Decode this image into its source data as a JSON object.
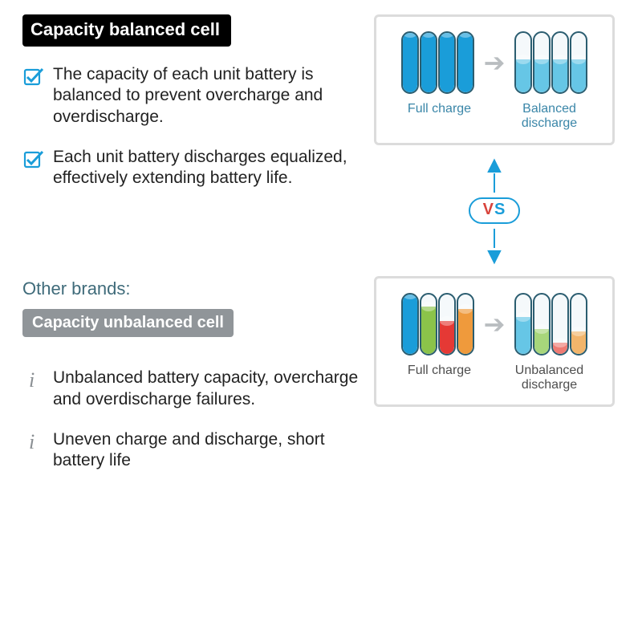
{
  "balanced": {
    "tag": "Capacity balanced cell",
    "tag_bg": "#000000",
    "bullets": [
      "The capacity of each unit battery is balanced to prevent overcharge and overdischarge.",
      "Each unit battery discharges equalized, effectively extending battery life."
    ],
    "bullet_icon": "checkbox",
    "panel": {
      "left_label": "Full charge",
      "right_label": "Balanced discharge",
      "left_cells": [
        {
          "level": 1.0,
          "color": "#1a9dd9"
        },
        {
          "level": 1.0,
          "color": "#1a9dd9"
        },
        {
          "level": 1.0,
          "color": "#1a9dd9"
        },
        {
          "level": 1.0,
          "color": "#1a9dd9"
        }
      ],
      "right_cells": [
        {
          "level": 0.55,
          "color": "#66c6e6"
        },
        {
          "level": 0.55,
          "color": "#66c6e6"
        },
        {
          "level": 0.55,
          "color": "#66c6e6"
        },
        {
          "level": 0.55,
          "color": "#66c6e6"
        }
      ],
      "label_color": "#2e88b5"
    }
  },
  "other_brands_heading": "Other brands:",
  "unbalanced": {
    "tag": "Capacity unbalanced cell",
    "tag_bg": "#909599",
    "bullets": [
      "Unbalanced battery capacity, overcharge and overdischarge failures.",
      "Uneven charge and discharge, short battery life"
    ],
    "bullet_icon": "info",
    "panel": {
      "left_label": "Full charge",
      "right_label": "Unbalanced discharge",
      "left_cells": [
        {
          "level": 1.0,
          "color": "#1a9dd9"
        },
        {
          "level": 0.8,
          "color": "#8bc34a"
        },
        {
          "level": 0.55,
          "color": "#e53935"
        },
        {
          "level": 0.75,
          "color": "#ef9a3c"
        }
      ],
      "right_cells": [
        {
          "level": 0.62,
          "color": "#66c6e6"
        },
        {
          "level": 0.42,
          "color": "#a7d67b"
        },
        {
          "level": 0.18,
          "color": "#ef7b73"
        },
        {
          "level": 0.38,
          "color": "#f2b56b"
        }
      ],
      "label_color": "#4e4e4e"
    }
  },
  "vs": {
    "text": "VS",
    "v_color": "#d8443c",
    "s_color": "#1a9dd9",
    "arrow_color": "#1a9dd9",
    "border_color": "#1a9dd9"
  },
  "style": {
    "panel_border": "#dcdcdc",
    "cell_outline": "#2b5d70",
    "arrow_gray": "#b9bdc0",
    "check_color": "#1a9dd9",
    "info_color": "#8a8f93",
    "heading_color": "#3f6b7a",
    "text_color": "#222222",
    "background": "#ffffff"
  }
}
